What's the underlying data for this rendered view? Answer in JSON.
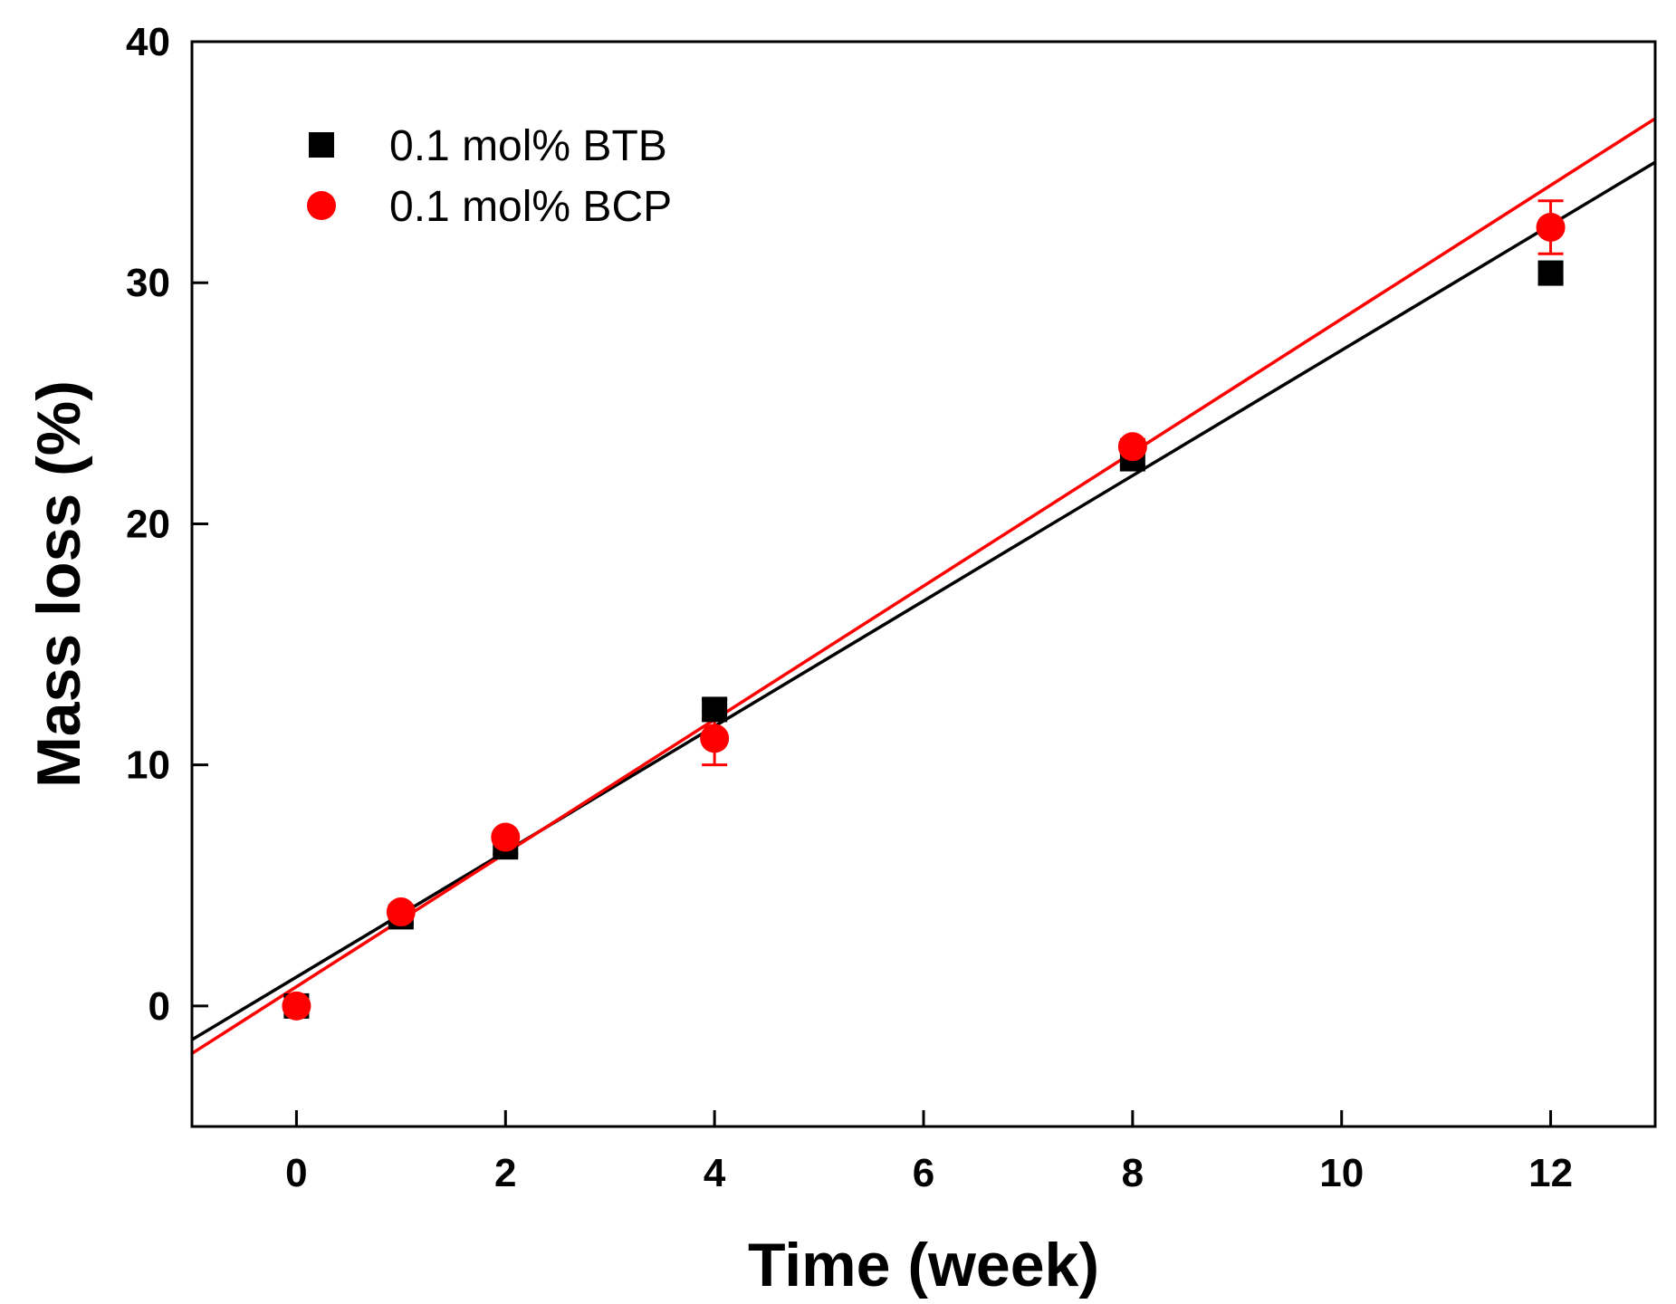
{
  "chart_data": {
    "type": "scatter",
    "title": "",
    "xlabel": "Time (week)",
    "ylabel": "Mass loss (%)",
    "xlim": [
      -1,
      13
    ],
    "ylim": [
      -5,
      40
    ],
    "xticks": [
      0,
      2,
      4,
      6,
      8,
      10,
      12
    ],
    "yticks": [
      0,
      10,
      20,
      30,
      40
    ],
    "grid": false,
    "legend_position": "top-left",
    "series": [
      {
        "name": "0.1 mol% BTB",
        "color": "#000000",
        "marker": "square",
        "x": [
          0,
          1,
          2,
          4,
          8,
          12
        ],
        "y": [
          0,
          3.7,
          6.6,
          12.3,
          22.7,
          30.4
        ],
        "yerr": [
          0.2,
          0.3,
          0.3,
          0.4,
          0.3,
          0.4
        ],
        "fit": {
          "slope": 2.6,
          "intercept": 1.2
        }
      },
      {
        "name": "0.1 mol% BCP",
        "color": "#ff0000",
        "marker": "circle",
        "x": [
          0,
          1,
          2,
          4,
          8,
          12
        ],
        "y": [
          0,
          3.9,
          7.0,
          11.1,
          23.2,
          32.3
        ],
        "yerr": [
          0.2,
          0.2,
          0.2,
          1.1,
          0.3,
          1.1
        ],
        "fit": {
          "slope": 2.77,
          "intercept": 0.8
        }
      }
    ]
  }
}
